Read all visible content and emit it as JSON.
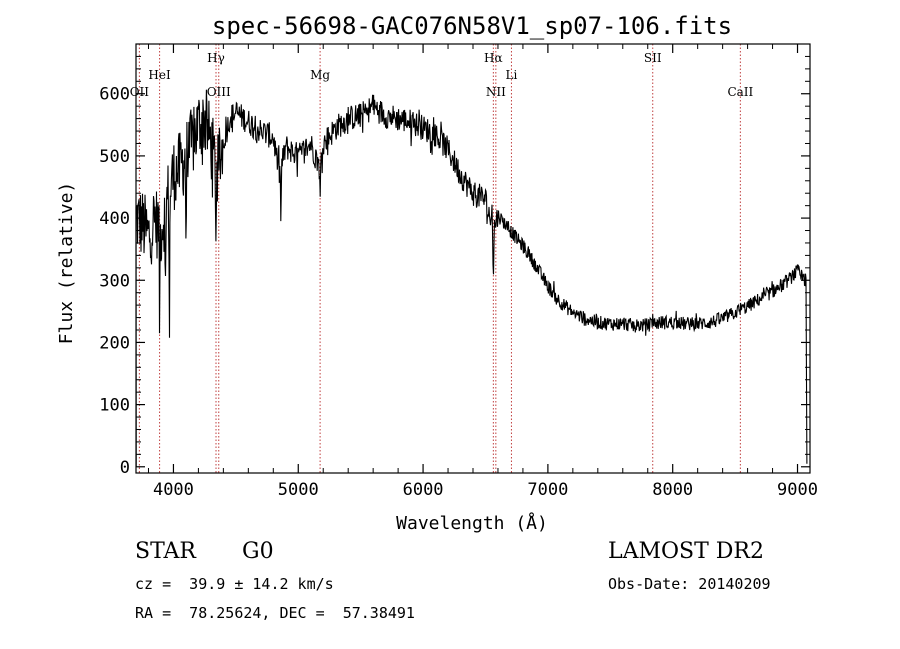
{
  "chart_data": {
    "type": "line",
    "title": "spec-56698-GAC076N58V1_sp07-106.fits",
    "xlabel": "Wavelength (Å)",
    "ylabel": "Flux (relative)",
    "xlim": [
      3700,
      9100
    ],
    "ylim": [
      -10,
      680
    ],
    "xticks": [
      4000,
      5000,
      6000,
      7000,
      8000,
      9000
    ],
    "yticks": [
      0,
      100,
      200,
      300,
      400,
      500,
      600
    ],
    "grid": false,
    "line_color": "#000000",
    "marker_color": "#c04040",
    "lines": [
      {
        "label": "OII",
        "wavelength": 3727,
        "label_row": "lower"
      },
      {
        "label": "HeI",
        "wavelength": 3889,
        "label_row": "middle"
      },
      {
        "label": "Hγ",
        "wavelength": 4341,
        "label_row": "upper"
      },
      {
        "label": "OIII",
        "wavelength": 4363,
        "label_row": "lower"
      },
      {
        "label": "Mg",
        "wavelength": 5175,
        "label_row": "middle"
      },
      {
        "label": "Hα",
        "wavelength": 6563,
        "label_row": "upper"
      },
      {
        "label": "NII",
        "wavelength": 6583,
        "label_row": "lower"
      },
      {
        "label": "Li",
        "wavelength": 6708,
        "label_row": "middle"
      },
      {
        "label": "SII",
        "wavelength": 7840,
        "label_row": "upper"
      },
      {
        "label": "CaII",
        "wavelength": 8542,
        "label_row": "lower"
      }
    ],
    "series": [
      {
        "x": [
          3700,
          3750,
          3800,
          3850,
          3900,
          3950,
          4000,
          4050,
          4100,
          4150,
          4200,
          4250,
          4300,
          4350,
          4400,
          4450,
          4500,
          4600,
          4700,
          4800,
          4850,
          4900,
          5000,
          5100,
          5175,
          5200,
          5300,
          5400,
          5500,
          5600,
          5700,
          5800,
          5900,
          6000,
          6100,
          6200,
          6300,
          6400,
          6500,
          6563,
          6600,
          6700,
          6800,
          6900,
          7000,
          7100,
          7200,
          7300,
          7400,
          7500,
          7600,
          7700,
          7800,
          7900,
          8000,
          8100,
          8200,
          8300,
          8400,
          8500,
          8600,
          8700,
          8800,
          8900,
          9000,
          9050
        ],
        "y": [
          400,
          390,
          370,
          400,
          380,
          430,
          470,
          480,
          500,
          520,
          550,
          560,
          520,
          470,
          520,
          560,
          570,
          555,
          540,
          530,
          470,
          515,
          500,
          520,
          480,
          520,
          545,
          560,
          565,
          580,
          565,
          560,
          555,
          545,
          535,
          510,
          470,
          440,
          430,
          380,
          405,
          380,
          355,
          325,
          290,
          265,
          248,
          238,
          232,
          230,
          230,
          227,
          228,
          232,
          232,
          230,
          230,
          232,
          238,
          248,
          258,
          270,
          282,
          295,
          315,
          300
        ]
      }
    ]
  },
  "info": {
    "object_class": "STAR",
    "subclass": "G0",
    "survey": "LAMOST DR2",
    "redshift": "cz =  39.9 ± 14.2 km/s",
    "obs_date": "Obs-Date: 20140209",
    "coords": "RA =  78.25624, DEC =  57.38491"
  }
}
